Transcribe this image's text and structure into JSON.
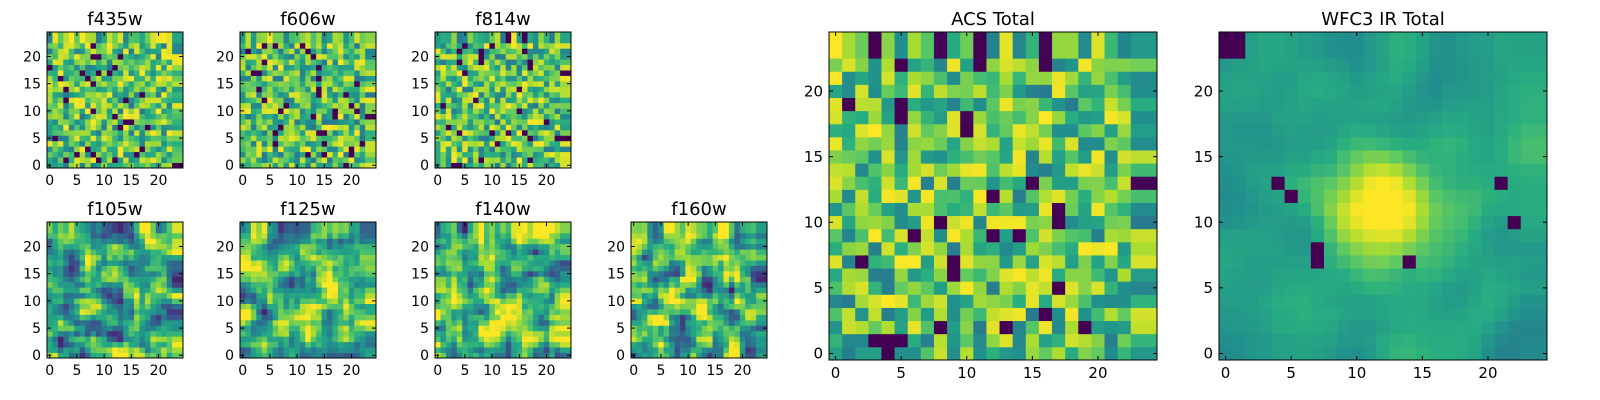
{
  "chart_data": [
    {
      "type": "heatmap",
      "title": "f435w",
      "colormap": "viridis",
      "grid_size": 24,
      "xlim": [
        0,
        24
      ],
      "ylim": [
        0,
        24
      ],
      "xticks": [
        0,
        5,
        10,
        15,
        20
      ],
      "yticks": [
        0,
        5,
        10,
        15,
        20
      ],
      "pattern": "noise",
      "seed": 11
    },
    {
      "type": "heatmap",
      "title": "f606w",
      "colormap": "viridis",
      "grid_size": 24,
      "xlim": [
        0,
        24
      ],
      "ylim": [
        0,
        24
      ],
      "xticks": [
        0,
        5,
        10,
        15,
        20
      ],
      "yticks": [
        0,
        5,
        10,
        15,
        20
      ],
      "pattern": "noise",
      "seed": 23
    },
    {
      "type": "heatmap",
      "title": "f814w",
      "colormap": "viridis",
      "grid_size": 24,
      "xlim": [
        0,
        24
      ],
      "ylim": [
        0,
        24
      ],
      "xticks": [
        0,
        5,
        10,
        15,
        20
      ],
      "yticks": [
        0,
        5,
        10,
        15,
        20
      ],
      "pattern": "noise",
      "seed": 37
    },
    {
      "type": "heatmap",
      "title": "f105w",
      "colormap": "viridis",
      "grid_size": 24,
      "xlim": [
        0,
        24
      ],
      "ylim": [
        0,
        24
      ],
      "xticks": [
        0,
        5,
        10,
        15,
        20
      ],
      "yticks": [
        0,
        5,
        10,
        15,
        20
      ],
      "pattern": "smooth-noise",
      "seed": 41
    },
    {
      "type": "heatmap",
      "title": "f125w",
      "colormap": "viridis",
      "grid_size": 24,
      "xlim": [
        0,
        24
      ],
      "ylim": [
        0,
        24
      ],
      "xticks": [
        0,
        5,
        10,
        15,
        20
      ],
      "yticks": [
        0,
        5,
        10,
        15,
        20
      ],
      "pattern": "smooth-noise",
      "seed": 53
    },
    {
      "type": "heatmap",
      "title": "f140w",
      "colormap": "viridis",
      "grid_size": 24,
      "xlim": [
        0,
        24
      ],
      "ylim": [
        0,
        24
      ],
      "xticks": [
        0,
        5,
        10,
        15,
        20
      ],
      "yticks": [
        0,
        5,
        10,
        15,
        20
      ],
      "pattern": "smooth-noise",
      "seed": 67
    },
    {
      "type": "heatmap",
      "title": "f160w",
      "colormap": "viridis",
      "grid_size": 24,
      "xlim": [
        0,
        24
      ],
      "ylim": [
        0,
        24
      ],
      "xticks": [
        0,
        5,
        10,
        15,
        20
      ],
      "yticks": [
        0,
        5,
        10,
        15,
        20
      ],
      "pattern": "smooth-noise",
      "seed": 79
    },
    {
      "type": "heatmap",
      "title": "ACS Total",
      "colormap": "viridis",
      "grid_size": 24,
      "xlim": [
        0,
        24
      ],
      "ylim": [
        0,
        24
      ],
      "xticks": [
        0,
        5,
        10,
        15,
        20
      ],
      "yticks": [
        0,
        5,
        10,
        15,
        20
      ],
      "pattern": "noise",
      "seed": 97
    },
    {
      "type": "heatmap",
      "title": "WFC3 IR Total",
      "colormap": "viridis",
      "grid_size": 24,
      "xlim": [
        0,
        24
      ],
      "ylim": [
        0,
        24
      ],
      "xticks": [
        0,
        5,
        10,
        15,
        20
      ],
      "yticks": [
        0,
        5,
        10,
        15,
        20
      ],
      "pattern": "central-source",
      "source_center": [
        12,
        11
      ],
      "seed": 131
    }
  ]
}
